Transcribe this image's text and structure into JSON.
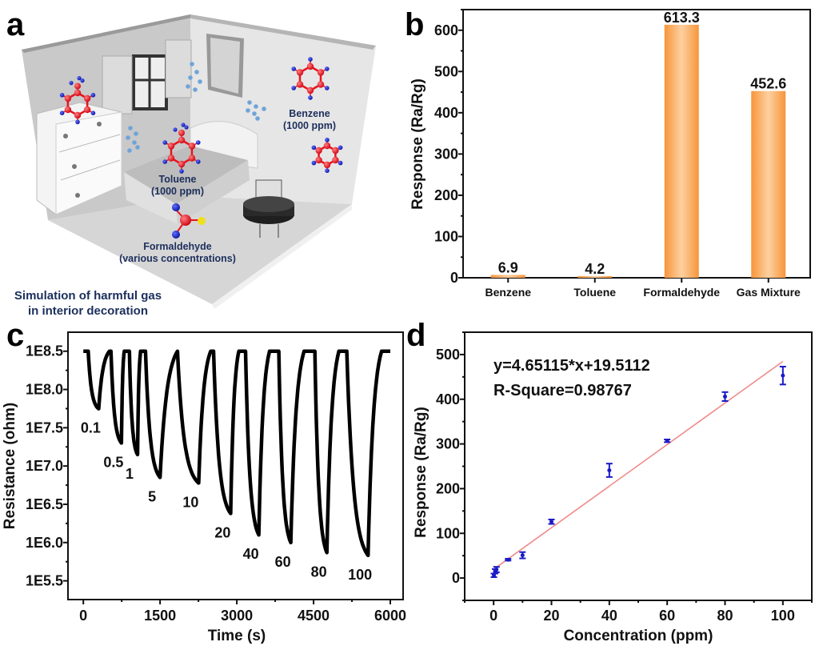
{
  "panel_labels": {
    "a": "a",
    "b": "b",
    "c": "c",
    "d": "d"
  },
  "illustration": {
    "toluene": "Toluene",
    "toluene_conc": "(1000 ppm)",
    "benzene": "Benzene",
    "benzene_conc": "(1000 ppm)",
    "formaldehyde": "Formaldehyde",
    "formaldehyde_conc": "(various concentrations)",
    "caption_line1": "Simulation of harmful gas",
    "caption_line2": "in interior decoration",
    "colors": {
      "label_text": "#1c2f5c",
      "carbon_atom": "#e8141c",
      "hydrogen_atom": "#1420c8",
      "oxygen_atom": "#f0e01a",
      "gas_dots": "#6fa4d8"
    }
  },
  "chart_data": [
    {
      "panel": "b",
      "type": "bar",
      "categories": [
        "Benzene",
        "Toluene",
        "Formaldehyde",
        "Gas Mixture"
      ],
      "values": [
        6.9,
        4.2,
        613.3,
        452.6
      ],
      "data_labels": [
        "6.9",
        "4.2",
        "613.3",
        "452.6"
      ],
      "ylabel": "Response (Ra/Rg)",
      "xlabel": "",
      "ylim": [
        0,
        650
      ],
      "yticks": [
        0,
        100,
        200,
        300,
        400,
        500,
        600
      ],
      "grid": false,
      "colors": {
        "bar_edge": "#f7953a",
        "bar_center": "#fdd0a0"
      }
    },
    {
      "panel": "c",
      "type": "line",
      "xlabel": "Time (s)",
      "ylabel": "Resistance (ohm)",
      "yscale": "log",
      "xlim": [
        -300,
        6250
      ],
      "ylim": [
        180000.0,
        560000000.0
      ],
      "xticks": [
        0,
        1500,
        3000,
        4500,
        6000
      ],
      "yticks": [
        "1E5.5",
        "1E6.0",
        "1E6.5",
        "1E7.0",
        "1E7.5",
        "1E8.0",
        "1E8.5"
      ],
      "baseline_ohm": 316000000.0,
      "series_color": "#000000",
      "grid": false,
      "cycles": [
        {
          "label": "0.1",
          "gas_in_s": 95,
          "gas_out_s": 300,
          "min_ohm": 56000000.0,
          "recovered_s": 510
        },
        {
          "label": "0.5",
          "gas_in_s": 540,
          "gas_out_s": 745,
          "min_ohm": 20000000.0,
          "recovered_s": 800
        },
        {
          "label": "1",
          "gas_in_s": 900,
          "gas_out_s": 1060,
          "min_ohm": 14100000.0,
          "recovered_s": 1120
        },
        {
          "label": "5",
          "gas_in_s": 1215,
          "gas_out_s": 1500,
          "min_ohm": 7100000.0,
          "recovered_s": 1840
        },
        {
          "label": "10",
          "gas_in_s": 1840,
          "gas_out_s": 2255,
          "min_ohm": 6000000.0,
          "recovered_s": 2490
        },
        {
          "label": "20",
          "gas_in_s": 2545,
          "gas_out_s": 2880,
          "min_ohm": 2400000.0,
          "recovered_s": 3040
        },
        {
          "label": "40",
          "gas_in_s": 3170,
          "gas_out_s": 3430,
          "min_ohm": 1260000.0,
          "recovered_s": 3640
        },
        {
          "label": "60",
          "gas_in_s": 3820,
          "gas_out_s": 4055,
          "min_ohm": 1000000.0,
          "recovered_s": 4315
        },
        {
          "label": "80",
          "gas_in_s": 4525,
          "gas_out_s": 4760,
          "min_ohm": 740000.0,
          "recovered_s": 4995
        },
        {
          "label": "100",
          "gas_in_s": 5150,
          "gas_out_s": 5565,
          "min_ohm": 680000.0,
          "recovered_s": 5830
        }
      ],
      "end_s": 6000
    },
    {
      "panel": "d",
      "type": "scatter",
      "xlabel": "Concentration (ppm)",
      "ylabel": "Response (Ra/Rg)",
      "xlim": [
        -10,
        110
      ],
      "ylim": [
        -50,
        550
      ],
      "xticks": [
        0,
        20,
        40,
        60,
        80,
        100
      ],
      "yticks": [
        0,
        100,
        200,
        300,
        400,
        500
      ],
      "x": [
        0.1,
        0.5,
        1,
        5,
        10,
        20,
        40,
        60,
        80,
        100
      ],
      "y": [
        6,
        15,
        19,
        41,
        51,
        126,
        241,
        307,
        406,
        453
      ],
      "yerr": [
        4,
        5,
        6,
        2,
        7,
        5,
        15,
        3,
        10,
        20
      ],
      "fit": {
        "slope": 4.65115,
        "intercept": 19.5112,
        "x_range": [
          0,
          100
        ]
      },
      "annotations": [
        "y=4.65115*x+19.5112",
        "R-Square=0.98767"
      ],
      "grid": false,
      "colors": {
        "points": "#1a1ac8",
        "fit_line": "#f08a8a"
      }
    }
  ]
}
